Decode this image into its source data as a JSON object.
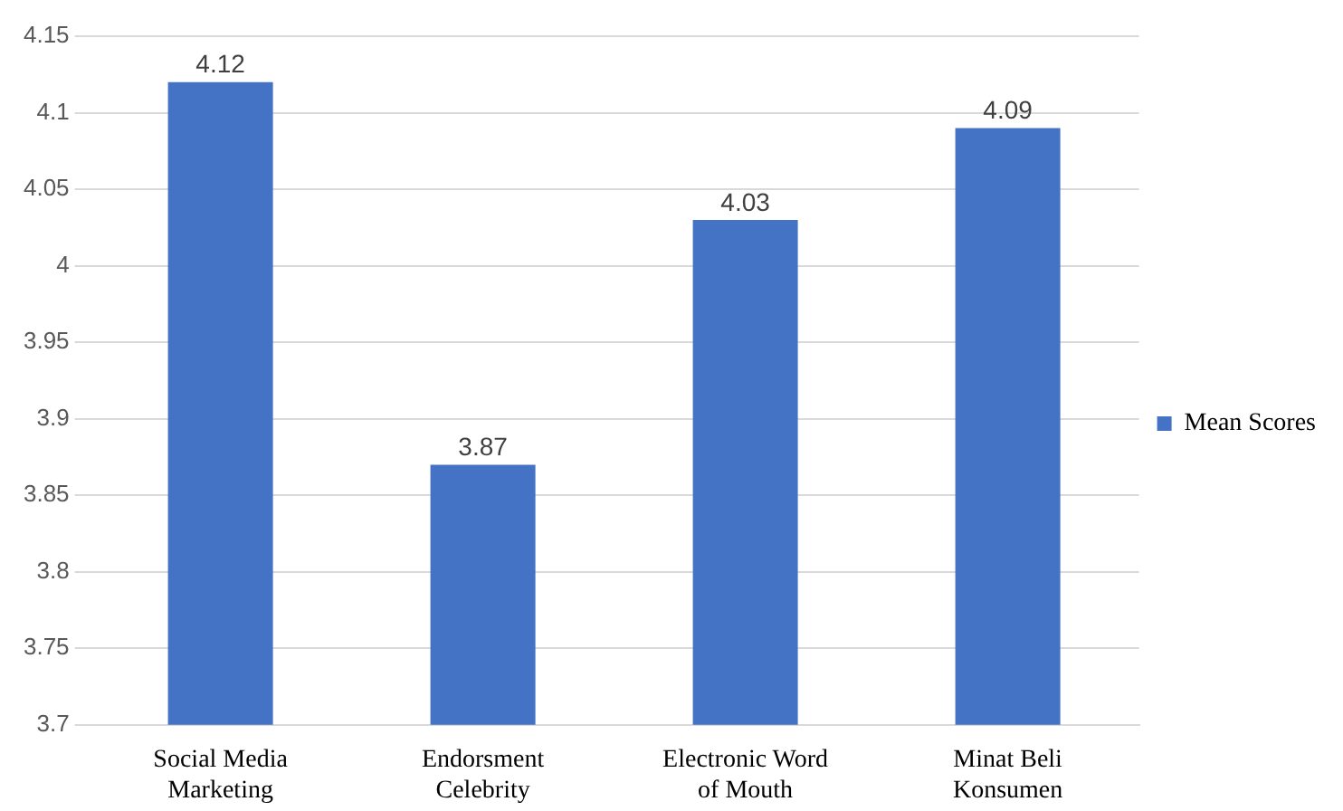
{
  "chart_data": {
    "type": "bar",
    "categories": [
      "Social Media Marketing",
      "Endorsment Celebrity",
      "Electronic Word of Mouth",
      "Minat Beli Konsumen"
    ],
    "series": [
      {
        "name": "Mean Scores",
        "color": "#4472c4",
        "values": [
          4.12,
          3.87,
          4.03,
          4.09
        ]
      }
    ],
    "ylim": [
      3.7,
      4.15
    ],
    "yticks": [
      3.7,
      3.75,
      3.8,
      3.85,
      3.9,
      3.95,
      4,
      4.05,
      4.1,
      4.15
    ],
    "grid": "y",
    "legend": "right",
    "data_labels": true
  }
}
